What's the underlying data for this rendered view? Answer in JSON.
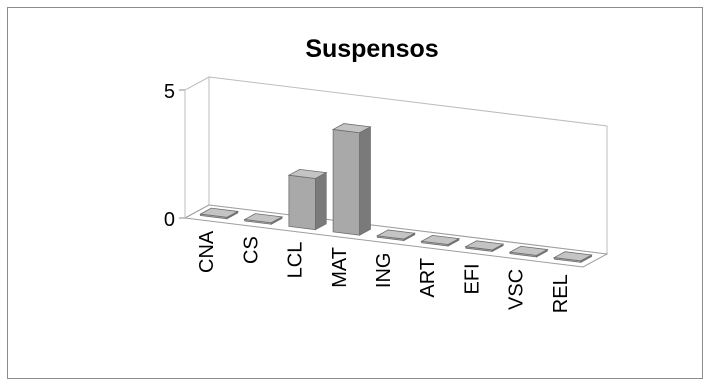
{
  "chart_data": {
    "type": "bar",
    "title": "Suspensos",
    "categories": [
      "CNA",
      "CS",
      "LCL",
      "MAT",
      "ING",
      "ART",
      "EFI",
      "VSC",
      "REL"
    ],
    "values": [
      0,
      0,
      2,
      4,
      0,
      0,
      0,
      0,
      0
    ],
    "ylim": [
      0,
      5
    ],
    "y_tick_labels": [
      "0",
      "5"
    ],
    "three_d": true,
    "grid": false,
    "legend": "none",
    "bar_color": "#a9a9a9"
  }
}
